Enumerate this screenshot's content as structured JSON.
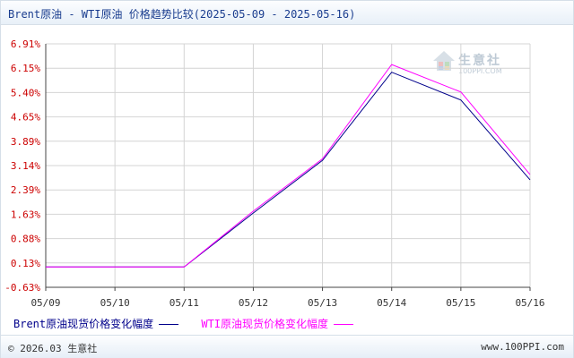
{
  "header": {
    "title": "Brent原油 - WTI原油 价格趋势比较(2025-05-09 - 2025-05-16)"
  },
  "watermark": {
    "text": "生意社",
    "sub": "100PPI.COM"
  },
  "chart_data": {
    "type": "line",
    "title": "Brent原油 - WTI原油 价格趋势比较(2025-05-09 - 2025-05-16)",
    "categories": [
      "05/09",
      "05/10",
      "05/11",
      "05/12",
      "05/13",
      "05/14",
      "05/15",
      "05/16"
    ],
    "y_ticks": [
      "6.91%",
      "6.15%",
      "5.40%",
      "4.65%",
      "3.89%",
      "3.14%",
      "2.39%",
      "1.63%",
      "0.88%",
      "0.13%",
      "-0.63%"
    ],
    "ylim": [
      -0.63,
      6.91
    ],
    "grid": true,
    "legend_position": "bottom-left",
    "series": [
      {
        "name": "Brent原油现货价格变化幅度",
        "color": "#00008b",
        "values": [
          0,
          0,
          0,
          1.67,
          3.3,
          6.03,
          5.17,
          2.7
        ]
      },
      {
        "name": "WTI原油现货价格变化幅度",
        "color": "#ff00ff",
        "values": [
          0,
          0,
          0,
          1.73,
          3.35,
          6.27,
          5.42,
          2.86
        ]
      }
    ]
  },
  "legend": {
    "brent": "Brent原油现货价格变化幅度",
    "wti": "WTI原油现货价格变化幅度"
  },
  "footer": {
    "copyright": "© 2026.03 生意社",
    "site": "www.100PPI.com"
  }
}
